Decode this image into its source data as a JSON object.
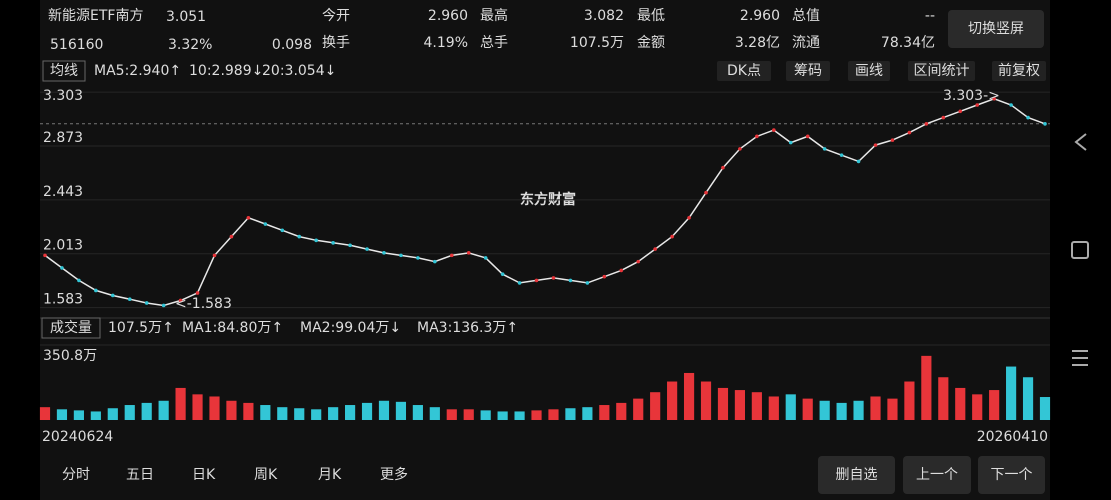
{
  "header": {
    "name": "新能源ETF南方",
    "price": "3.051",
    "code": "516160",
    "change_pct": "3.32%",
    "change": "0.098",
    "stats": [
      {
        "top": {
          "label": "今开",
          "value": "2.960"
        },
        "bottom": {
          "label": "换手",
          "value": "4.19%"
        }
      },
      {
        "top": {
          "label": "最高",
          "value": "3.082"
        },
        "bottom": {
          "label": "总手",
          "value": "107.5万"
        }
      },
      {
        "top": {
          "label": "最低",
          "value": "2.960"
        },
        "bottom": {
          "label": "金额",
          "value": "3.28亿"
        }
      },
      {
        "top": {
          "label": "总值",
          "value": "--"
        },
        "bottom": {
          "label": "流通",
          "value": "78.34亿"
        }
      }
    ],
    "button": "切换竖屏"
  },
  "toolbar": {
    "ma_label": "均线",
    "ma": [
      "MA5:2.940↑",
      "10:2.989↓",
      "20:3.054↓"
    ],
    "buttons": [
      "DK点",
      "筹码",
      "画线",
      "区间统计",
      "前复权"
    ]
  },
  "chart_data": {
    "type": "line",
    "watermark": "东方财富",
    "color": "#e8e8e8",
    "values": [
      2.0,
      1.9,
      1.8,
      1.72,
      1.68,
      1.65,
      1.62,
      1.6,
      1.64,
      1.7,
      2.0,
      2.15,
      2.3,
      2.25,
      2.2,
      2.15,
      2.12,
      2.1,
      2.08,
      2.05,
      2.02,
      2.0,
      1.98,
      1.95,
      2.0,
      2.02,
      1.98,
      1.85,
      1.78,
      1.8,
      1.82,
      1.8,
      1.78,
      1.83,
      1.88,
      1.95,
      2.05,
      2.15,
      2.3,
      2.5,
      2.7,
      2.85,
      2.95,
      3.0,
      2.9,
      2.95,
      2.85,
      2.8,
      2.75,
      2.88,
      2.92,
      2.98,
      3.05,
      3.1,
      3.15,
      3.2,
      3.25,
      3.2,
      3.1,
      3.05
    ],
    "ylim": [
      1.5,
      3.36
    ],
    "yticks": [
      1.583,
      2.013,
      2.443,
      2.873,
      3.303
    ],
    "grid": true,
    "annotations": [
      "3.303->",
      "<-1.583"
    ],
    "x_labels": [
      "20240624",
      "20260410"
    ]
  },
  "volume": {
    "type": "bar",
    "header": "成交量",
    "legend": [
      "107.5万↑",
      "MA1:84.80万↑",
      "MA2:99.04万↓",
      "MA3:136.3万↑"
    ],
    "up_color": "#e8353a",
    "down_color": "#33c6d6",
    "values": [
      60,
      50,
      45,
      40,
      55,
      70,
      80,
      90,
      150,
      120,
      110,
      90,
      80,
      70,
      60,
      55,
      50,
      60,
      70,
      80,
      90,
      85,
      70,
      60,
      50,
      50,
      45,
      40,
      40,
      45,
      50,
      55,
      60,
      70,
      80,
      100,
      130,
      180,
      220,
      180,
      150,
      140,
      130,
      110,
      120,
      100,
      90,
      80,
      90,
      110,
      100,
      180,
      300,
      200,
      150,
      120,
      140,
      250,
      200,
      107.5
    ],
    "ylim": [
      0,
      350.8
    ],
    "yticks": [
      {
        "value": 350.8,
        "label": "350.8万"
      }
    ]
  },
  "footer": {
    "tabs": [
      "分时",
      "五日",
      "日K",
      "周K",
      "月K",
      "更多"
    ],
    "buttons": [
      "删自选",
      "上一个",
      "下一个"
    ]
  }
}
